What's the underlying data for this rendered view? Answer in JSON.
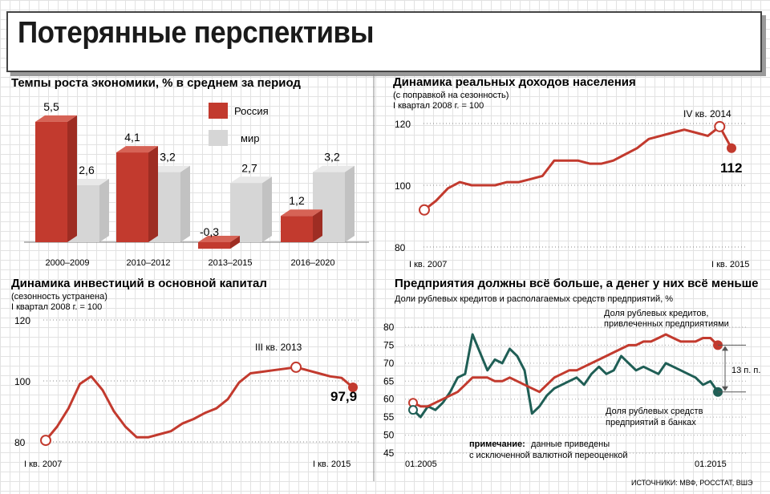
{
  "page": {
    "title": "Потерянные перспективы",
    "sources": "ИСТОЧНИКИ: МВФ, РОССТАТ, ВШЭ"
  },
  "colors": {
    "russia": "#c23a2e",
    "world": "#d6d6d6",
    "line_red": "#c23a2e",
    "line_green": "#1f5e55"
  },
  "panels": {
    "growth": {
      "title": "Темпы роста экономики, % в среднем за период"
    },
    "incomes": {
      "title": "Динамика реальных доходов населения",
      "subtitle1": "(с поправкой на сезонность)",
      "subtitle2": "I квартал 2008 г. = 100",
      "peak_label": "IV кв. 2014",
      "end_value": "112",
      "x_start": "I кв. 2007",
      "x_end": "I кв. 2015"
    },
    "investment": {
      "title": "Динамика инвестиций в основной капитал",
      "subtitle1": "(сезонность устранена)",
      "subtitle2": "I квартал 2008 г. = 100",
      "peak_label": "III кв. 2013",
      "end_value": "97,9",
      "x_start": "I кв. 2007",
      "x_end": "I кв. 2015"
    },
    "credit": {
      "title": "Предприятия должны всё больше, а денег у них всё меньше",
      "subtitle": "Доли рублевых кредитов и располагаемых средств предприятий, %",
      "label_red1": "Доля рублевых кредитов,",
      "label_red2": "привлеченных предприятиями",
      "label_green1": "Доля рублевых средств",
      "label_green2": "предприятий в банках",
      "gap_label": "13 п. п.",
      "note_bold": "примечание:",
      "note_rest1": " данные приведены",
      "note_line2": "с исключенной валютной переоценкой",
      "x_start": "01.2005",
      "x_end": "01.2015"
    }
  },
  "chart_data": [
    {
      "type": "bar",
      "title": "Темпы роста экономики, % в среднем за период",
      "categories": [
        "2000–2009",
        "2010–2012",
        "2013–2015",
        "2016–2020"
      ],
      "series": [
        {
          "name": "Россия",
          "values": [
            5.5,
            4.1,
            -0.3,
            1.2
          ],
          "labels": [
            "5,5",
            "4,1",
            "-0,3",
            "1,2"
          ]
        },
        {
          "name": "мир",
          "values": [
            2.6,
            3.2,
            2.7,
            3.2
          ],
          "labels": [
            "2,6",
            "3,2",
            "2,7",
            "3,2"
          ]
        }
      ]
    },
    {
      "type": "line",
      "title": "Динамика реальных доходов населения",
      "ylim": [
        80,
        125
      ],
      "yticks": [
        "80",
        "100",
        "120"
      ],
      "values": [
        92,
        95,
        99,
        101,
        100,
        100,
        100,
        101,
        101,
        102,
        103,
        108,
        108,
        108,
        107,
        107,
        108,
        110,
        112,
        115,
        116,
        117,
        118,
        117,
        116,
        119,
        112
      ]
    },
    {
      "type": "line",
      "title": "Динамика инвестиций в основной капитал",
      "ylim": [
        80,
        120
      ],
      "yticks": [
        "80",
        "100",
        "120"
      ],
      "values": [
        80.5,
        85,
        91,
        99,
        101.5,
        97,
        90,
        85,
        81.5,
        81.5,
        82.5,
        83.5,
        86,
        87.5,
        89.5,
        91,
        94,
        99.5,
        102.5,
        103,
        103.5,
        104,
        104.5,
        103.5,
        102.5,
        101.5,
        101,
        97.9
      ]
    },
    {
      "type": "line",
      "title": "Предприятия должны всё больше, а денег у них всё меньше",
      "ylim": [
        45,
        82
      ],
      "yticks": [
        "45",
        "50",
        "55",
        "60",
        "65",
        "70",
        "75",
        "80"
      ],
      "series": [
        {
          "name": "Доля рублевых кредитов, привлеченных предприятиями",
          "values": [
            59,
            58,
            58,
            59,
            60,
            61,
            62,
            64,
            66,
            66,
            66,
            65,
            65,
            66,
            65,
            64,
            63,
            62,
            64,
            66,
            67,
            68,
            68,
            69,
            70,
            71,
            72,
            73,
            74,
            75,
            75,
            76,
            76,
            77,
            78,
            77,
            76,
            76,
            76,
            77,
            77,
            75
          ]
        },
        {
          "name": "Доля рублевых средств предприятий в банках",
          "values": [
            57,
            55,
            58,
            57,
            59,
            62,
            66,
            67,
            78,
            73,
            68,
            71,
            70,
            74,
            72,
            68,
            56,
            58,
            61,
            63,
            64,
            65,
            66,
            64,
            67,
            69,
            67,
            68,
            72,
            70,
            68,
            69,
            68,
            67,
            70,
            69,
            68,
            67,
            66,
            64,
            65,
            62
          ]
        }
      ]
    }
  ]
}
